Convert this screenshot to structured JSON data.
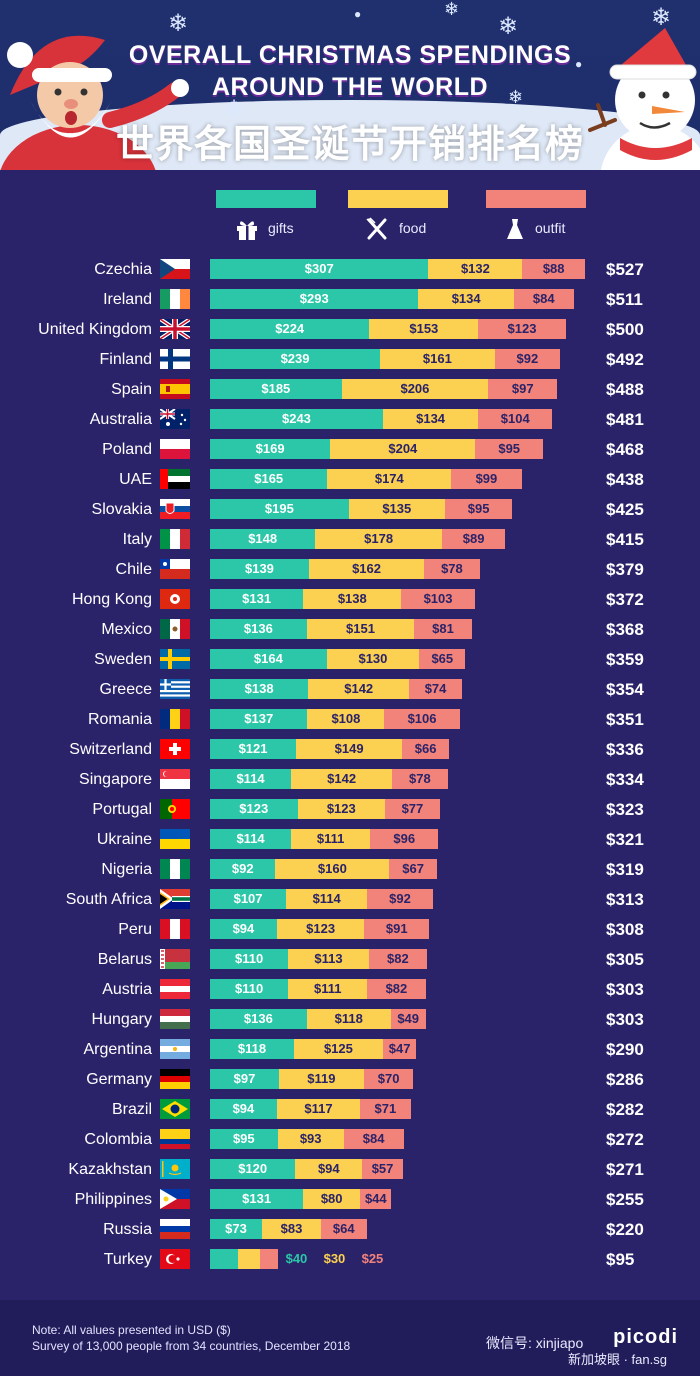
{
  "header": {
    "title_line1": "OVERALL CHRISTMAS SPENDINGS",
    "title_line2": "AROUND THE WORLD",
    "title_cn": "世界各国圣诞节开销排名榜"
  },
  "legend": {
    "gifts": "gifts",
    "food": "food",
    "outfit": "outfit"
  },
  "colors": {
    "gifts": "#2bc7a8",
    "food": "#fcd050",
    "outfit": "#f2837b",
    "background": "#2a2369"
  },
  "chart_data": {
    "type": "bar",
    "orientation": "horizontal",
    "stacked": true,
    "currency": "USD",
    "categories": [
      "Czechia",
      "Ireland",
      "United Kingdom",
      "Finland",
      "Spain",
      "Australia",
      "Poland",
      "UAE",
      "Slovakia",
      "Italy",
      "Chile",
      "Hong Kong",
      "Mexico",
      "Sweden",
      "Greece",
      "Romania",
      "Switzerland",
      "Singapore",
      "Portugal",
      "Ukraine",
      "Nigeria",
      "South Africa",
      "Peru",
      "Belarus",
      "Austria",
      "Hungary",
      "Argentina",
      "Germany",
      "Brazil",
      "Colombia",
      "Kazakhstan",
      "Philippines",
      "Russia",
      "Turkey"
    ],
    "series": [
      {
        "name": "gifts",
        "values": [
          307,
          293,
          224,
          239,
          185,
          243,
          169,
          165,
          195,
          148,
          139,
          131,
          136,
          164,
          138,
          137,
          121,
          114,
          123,
          114,
          92,
          107,
          94,
          110,
          110,
          136,
          118,
          97,
          94,
          95,
          120,
          131,
          73,
          40
        ]
      },
      {
        "name": "food",
        "values": [
          132,
          134,
          153,
          161,
          206,
          134,
          204,
          174,
          135,
          178,
          162,
          138,
          151,
          130,
          142,
          108,
          149,
          142,
          123,
          111,
          160,
          114,
          123,
          113,
          111,
          118,
          125,
          119,
          117,
          93,
          94,
          80,
          83,
          30
        ]
      },
      {
        "name": "outfit",
        "values": [
          88,
          84,
          123,
          92,
          97,
          104,
          95,
          99,
          95,
          89,
          78,
          103,
          81,
          65,
          74,
          106,
          66,
          78,
          77,
          96,
          67,
          92,
          91,
          82,
          82,
          49,
          47,
          70,
          71,
          84,
          57,
          44,
          64,
          25
        ]
      }
    ],
    "labels": {
      "gifts": [
        "$307",
        "$293",
        "$224",
        "$239",
        "$185",
        "$243",
        "$169",
        "$165",
        "$195",
        "$148",
        "$139",
        "$131",
        "$136",
        "$164",
        "$138",
        "$137",
        "$121",
        "$114",
        "$123",
        "$114",
        "$92",
        "$107",
        "$94",
        "$110",
        "$110",
        "$136",
        "$118",
        "$97",
        "$94",
        "$95",
        "$120",
        "$131",
        "$73",
        "$40"
      ],
      "food": [
        "$132",
        "$134",
        "$153",
        "$161",
        "$206",
        "$134",
        "$204",
        "$174",
        "$135",
        "$178",
        "$162",
        "$138",
        "$151",
        "$130",
        "$142",
        "$108",
        "$149",
        "$142",
        "$123",
        "$111",
        "$160",
        "$114",
        "$123",
        "$113",
        "$111",
        "$118",
        "$125",
        "$119",
        "$117",
        "$93",
        "$94",
        "$80",
        "$83",
        "$30"
      ],
      "outfit": [
        "$88",
        "$84",
        "$123",
        "$92",
        "$97",
        "$104",
        "$95",
        "$99",
        "$95",
        "$89",
        "$78",
        "$103",
        "$81",
        "$65",
        "$74",
        "$106",
        "$66",
        "$78",
        "$77",
        "$96",
        "$67",
        "$92",
        "$91",
        "$82",
        "$82",
        "$49",
        "$47",
        "$70",
        "$71",
        "$84",
        "$57",
        "$44",
        "$64",
        "$25"
      ]
    },
    "totals": [
      "$527",
      "$511",
      "$500",
      "$492",
      "$488",
      "$481",
      "$468",
      "$438",
      "$425",
      "$415",
      "$379",
      "$372",
      "$368",
      "$359",
      "$354",
      "$351",
      "$336",
      "$334",
      "$323",
      "$321",
      "$319",
      "$313",
      "$308",
      "$305",
      "$303",
      "$303",
      "$290",
      "$286",
      "$282",
      "$272",
      "$271",
      "$255",
      "$220",
      "$95"
    ],
    "xlim": [
      0,
      527
    ]
  },
  "footer": {
    "note": "Note: All values presented in USD ($)",
    "source": "Survey of 13,000 people from 34 countries, December 2018",
    "brand": "picodi",
    "watermark_line1": "微信号: xinjiapo",
    "watermark_line2": "新加坡眼 · fan.sg"
  }
}
